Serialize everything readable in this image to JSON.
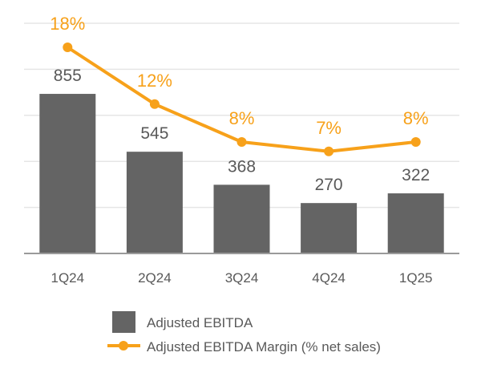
{
  "chart_data": {
    "type": "bar+line",
    "categories": [
      "1Q24",
      "2Q24",
      "3Q24",
      "4Q24",
      "1Q25"
    ],
    "series": [
      {
        "name": "Adjusted EBITDA",
        "type": "bar",
        "values": [
          855,
          545,
          368,
          270,
          322
        ],
        "labels": [
          "855",
          "545",
          "368",
          "270",
          "322"
        ],
        "color": "#646464"
      },
      {
        "name": "Adjusted EBITDA Margin (% net sales)",
        "type": "line",
        "values": [
          18,
          12,
          8,
          7,
          8
        ],
        "labels": [
          "18%",
          "12%",
          "8%",
          "7%",
          "8%"
        ],
        "color": "#F7A11A"
      }
    ],
    "grid": true,
    "legend": "bottom",
    "xlabel": "",
    "ylabel": ""
  }
}
